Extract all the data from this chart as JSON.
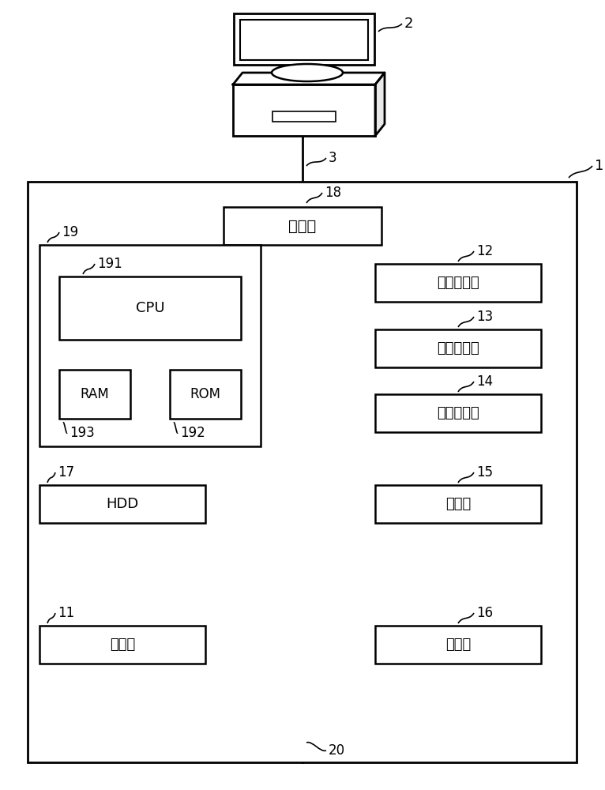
{
  "bg_color": "#ffffff",
  "fig_width": 7.66,
  "fig_height": 10.0,
  "labels": {
    "tsushin": "通信部",
    "zuzo_dori": "图像读取部",
    "zuzo_shori": "图像处理部",
    "zuzo_keisei": "图像形成部",
    "kyuushi": "供纸部",
    "teikei": "定影部",
    "hdd": "HDD",
    "sousa": "操作部",
    "cpu": "CPU",
    "ram": "RAM",
    "rom": "ROM"
  },
  "nums": {
    "computer": "2",
    "cable": "3",
    "main": "1",
    "bus": "20",
    "tsushin": "18",
    "zuzo_dori": "12",
    "zuzo_shori": "13",
    "zuzo_keisei": "14",
    "kyuushi": "15",
    "teikei": "16",
    "hdd": "17",
    "sousa": "11",
    "cpu": "191",
    "ram": "193",
    "rom": "192",
    "ctrl": "19"
  }
}
